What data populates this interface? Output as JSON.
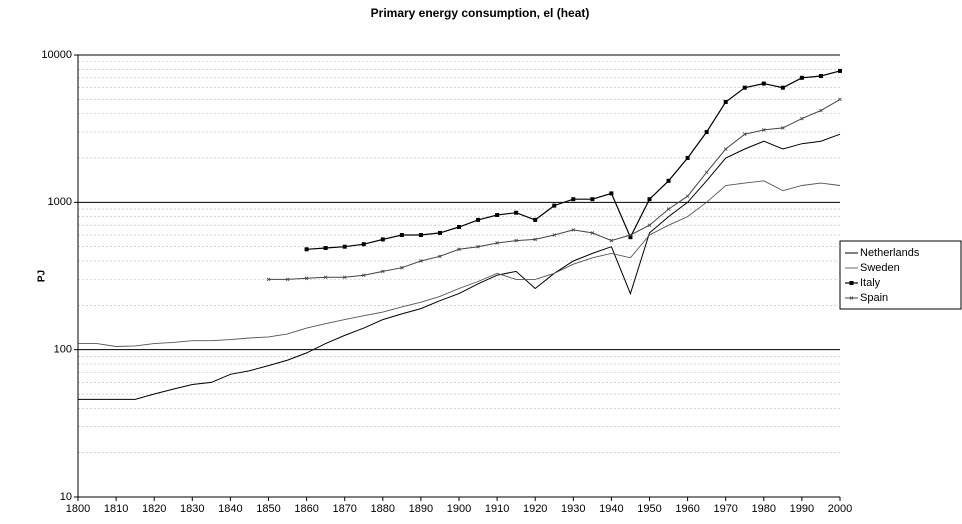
{
  "chart_data": {
    "type": "line",
    "title": "Primary energy consumption, el (heat)",
    "y_label": "PJ",
    "log_scale": true,
    "grid": true,
    "legend_position": "right",
    "x": [
      1800,
      1805,
      1810,
      1815,
      1820,
      1825,
      1830,
      1835,
      1840,
      1845,
      1850,
      1855,
      1860,
      1865,
      1870,
      1875,
      1880,
      1885,
      1890,
      1895,
      1900,
      1905,
      1910,
      1915,
      1920,
      1925,
      1930,
      1935,
      1940,
      1945,
      1950,
      1955,
      1960,
      1965,
      1970,
      1975,
      1980,
      1985,
      1990,
      1995,
      2000
    ],
    "xlim": [
      1800,
      2000
    ],
    "xticks": [
      1800,
      1810,
      1820,
      1830,
      1840,
      1850,
      1860,
      1870,
      1880,
      1890,
      1900,
      1910,
      1920,
      1930,
      1940,
      1950,
      1960,
      1970,
      1980,
      1990,
      2000
    ],
    "ylim": [
      10,
      10000
    ],
    "yticks": [
      10,
      100,
      1000,
      10000
    ],
    "series": [
      {
        "name": "Netherlands",
        "color": "#000000",
        "values": [
          46,
          46,
          46,
          46,
          50,
          54,
          58,
          60,
          68,
          72,
          78,
          85,
          95,
          110,
          125,
          140,
          160,
          175,
          190,
          215,
          240,
          280,
          320,
          340,
          260,
          330,
          400,
          450,
          500,
          240,
          620,
          800,
          1000,
          1400,
          2000,
          2300,
          2600,
          2300,
          2500,
          2600,
          2900
        ]
      },
      {
        "name": "Sweden",
        "color": "#555555",
        "values": [
          110,
          110,
          105,
          106,
          110,
          112,
          115,
          115,
          117,
          120,
          122,
          128,
          140,
          150,
          160,
          170,
          180,
          195,
          210,
          230,
          260,
          290,
          330,
          300,
          300,
          330,
          380,
          420,
          450,
          420,
          600,
          700,
          800,
          1000,
          1300,
          1350,
          1400,
          1200,
          1300,
          1350,
          1300
        ]
      },
      {
        "name": "Italy",
        "color": "#000000",
        "values": [
          null,
          null,
          null,
          null,
          null,
          null,
          null,
          null,
          null,
          null,
          null,
          null,
          480,
          490,
          500,
          520,
          560,
          600,
          600,
          620,
          680,
          760,
          820,
          850,
          760,
          950,
          1050,
          1050,
          1150,
          580,
          1050,
          1400,
          2000,
          3000,
          4800,
          6000,
          6400,
          6000,
          7000,
          7200,
          7800
        ]
      },
      {
        "name": "Spain",
        "color": "#444444",
        "values": [
          null,
          null,
          null,
          null,
          null,
          null,
          null,
          null,
          null,
          null,
          300,
          300,
          305,
          310,
          310,
          320,
          340,
          360,
          400,
          430,
          480,
          500,
          530,
          550,
          560,
          600,
          650,
          620,
          550,
          600,
          700,
          900,
          1100,
          1600,
          2300,
          2900,
          3100,
          3200,
          3700,
          4200,
          5000
        ]
      }
    ]
  }
}
